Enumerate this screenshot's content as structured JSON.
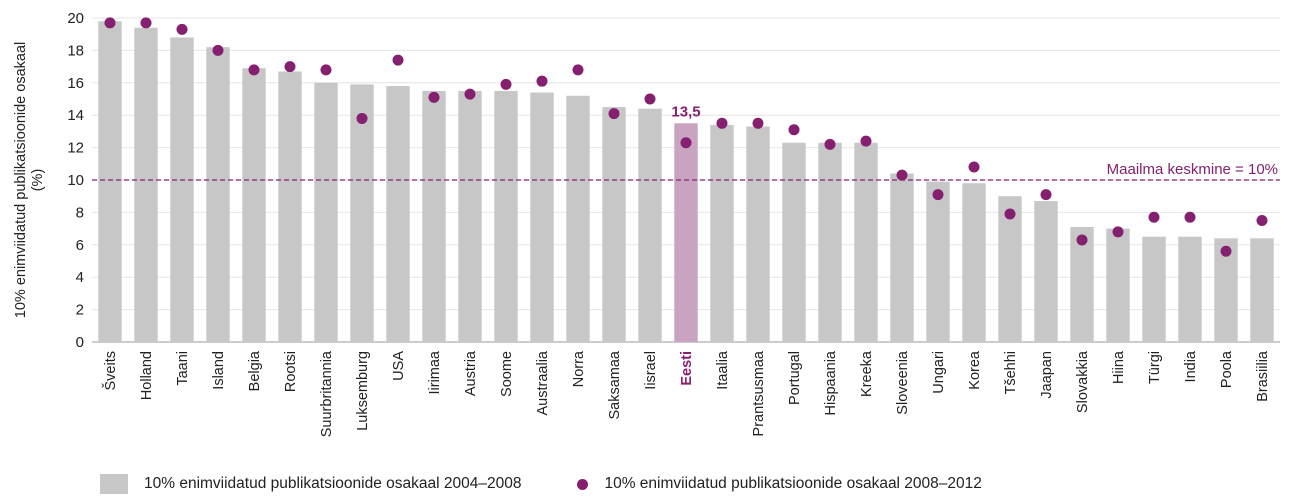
{
  "chart_data": {
    "type": "bar",
    "ylabel": "10% enimviidatud publikatsioonide osakaal (%)",
    "ylim": [
      0,
      20
    ],
    "yticks": [
      0,
      2,
      4,
      6,
      8,
      10,
      12,
      14,
      16,
      18,
      20
    ],
    "categories": [
      "Šveits",
      "Holland",
      "Taani",
      "Island",
      "Belgia",
      "Rootsi",
      "Suurbritannia",
      "Luksemburg",
      "USA",
      "Iirimaa",
      "Austria",
      "Soome",
      "Austraalia",
      "Norra",
      "Saksamaa",
      "Iisrael",
      "Eesti",
      "Itaalia",
      "Prantsusmaa",
      "Portugal",
      "Hispaania",
      "Kreeka",
      "Sloveenia",
      "Ungari",
      "Korea",
      "Tšehhi",
      "Jaapan",
      "Slovakkia",
      "Hiina",
      "Türgi",
      "India",
      "Poola",
      "Brasiilia"
    ],
    "highlight_category": "Eesti",
    "highlight_label": "13,5",
    "series": [
      {
        "name": "10% enimviidatud publikatsioonide osakaal 2004–2008",
        "kind": "bar",
        "color": "#c7c7c7",
        "highlight_color": "#c9a4c1",
        "values": [
          19.8,
          19.4,
          18.8,
          18.2,
          16.9,
          16.7,
          16.0,
          15.9,
          15.8,
          15.5,
          15.5,
          15.5,
          15.4,
          15.2,
          14.5,
          14.4,
          13.5,
          13.4,
          13.3,
          12.3,
          12.3,
          12.3,
          10.4,
          9.9,
          9.8,
          9.0,
          8.7,
          7.1,
          7.0,
          6.5,
          6.5,
          6.4,
          6.4
        ]
      },
      {
        "name": "10% enimviidatud publikatsioonide osakaal 2008–2012",
        "kind": "dot",
        "color": "#84206f",
        "values": [
          19.7,
          19.7,
          19.3,
          18.0,
          16.8,
          17.0,
          16.8,
          13.8,
          17.4,
          15.1,
          15.3,
          15.9,
          16.1,
          16.8,
          14.1,
          15.0,
          12.3,
          13.5,
          13.5,
          13.1,
          12.2,
          12.4,
          10.3,
          9.1,
          10.8,
          7.9,
          9.1,
          6.3,
          6.8,
          7.7,
          7.7,
          5.6,
          7.5
        ]
      }
    ],
    "reference_line": {
      "value": 10,
      "label": "Maailma keskmine = 10%",
      "color": "#84206f"
    },
    "legend": {
      "placement": "bottom-left",
      "bar_label": "10% enimviidatud publikatsioonide osakaal 2004–2008",
      "dot_label": "10% enimviidatud publikatsioonide osakaal 2008–2012"
    },
    "grid": true
  }
}
